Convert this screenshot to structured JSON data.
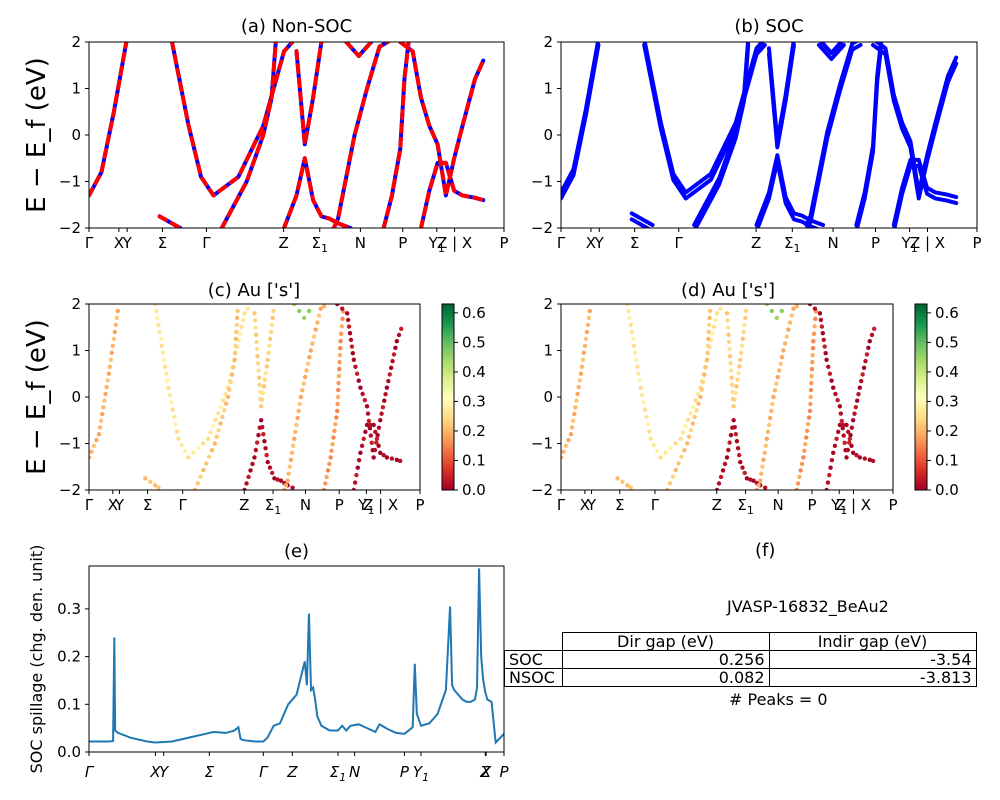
{
  "chart_data": [
    {
      "type": "line",
      "title": "(a) Non-SOC",
      "ylabel": "E − E_f (eV)",
      "ylim": [
        -2,
        2
      ],
      "yticks": [
        "−2",
        "−1",
        "0",
        "1",
        "2"
      ],
      "kpath": [
        "Γ",
        "X",
        "Y",
        "Σ",
        "Γ",
        "Z",
        "Σ1",
        "N",
        "P",
        "Y1",
        "Z | X",
        "P"
      ],
      "kpos": [
        0,
        0.072,
        0.092,
        0.177,
        0.283,
        0.469,
        0.556,
        0.654,
        0.756,
        0.838,
        0.881,
        1.0
      ],
      "series": [
        {
          "color": "#0000ff",
          "bands": [
            [
              [
                0,
                -1.3
              ],
              [
                0.03,
                -0.8
              ],
              [
                0.06,
                0.5
              ],
              [
                0.09,
                2
              ]
            ],
            [
              [
                0.2,
                2
              ],
              [
                0.24,
                0.2
              ],
              [
                0.27,
                -0.9
              ],
              [
                0.3,
                -1.3
              ],
              [
                0.36,
                -0.9
              ],
              [
                0.42,
                0.2
              ],
              [
                0.47,
                1.8
              ],
              [
                0.49,
                2
              ]
            ],
            [
              [
                0.32,
                -2
              ],
              [
                0.38,
                -1.0
              ],
              [
                0.42,
                0
              ],
              [
                0.44,
                0.8
              ],
              [
                0.45,
                2
              ]
            ],
            [
              [
                0.47,
                -2
              ],
              [
                0.5,
                -1.3
              ],
              [
                0.52,
                -0.5
              ],
              [
                0.54,
                -1.4
              ],
              [
                0.56,
                -1.75
              ],
              [
                0.58,
                -1.8
              ],
              [
                0.6,
                -1.9
              ],
              [
                0.63,
                -2
              ]
            ],
            [
              [
                0.5,
                1.8
              ],
              [
                0.52,
                -0.2
              ],
              [
                0.54,
                0.8
              ],
              [
                0.56,
                2
              ]
            ],
            [
              [
                0.59,
                -2
              ],
              [
                0.6,
                -1.8
              ],
              [
                0.64,
                0
              ],
              [
                0.67,
                1.0
              ],
              [
                0.7,
                1.9
              ],
              [
                0.72,
                2
              ]
            ],
            [
              [
                0.62,
                2
              ],
              [
                0.65,
                1.7
              ],
              [
                0.68,
                2
              ]
            ],
            [
              [
                0.71,
                -2
              ],
              [
                0.73,
                -1.3
              ],
              [
                0.75,
                -0.3
              ],
              [
                0.76,
                1.2
              ],
              [
                0.77,
                2
              ]
            ],
            [
              [
                0.75,
                2
              ],
              [
                0.78,
                1.8
              ],
              [
                0.8,
                0.8
              ],
              [
                0.82,
                0.2
              ],
              [
                0.84,
                -0.2
              ],
              [
                0.86,
                -1.3
              ],
              [
                0.88,
                -0.5
              ],
              [
                0.9,
                0.2
              ],
              [
                0.93,
                1.2
              ],
              [
                0.95,
                1.6
              ]
            ],
            [
              [
                0.8,
                -2
              ],
              [
                0.82,
                -1.2
              ],
              [
                0.84,
                -0.6
              ],
              [
                0.86,
                -0.6
              ],
              [
                0.88,
                -1.2
              ],
              [
                0.9,
                -1.3
              ],
              [
                0.93,
                -1.35
              ],
              [
                0.95,
                -1.4
              ]
            ],
            [
              [
                0.17,
                -1.75
              ],
              [
                0.2,
                -1.9
              ],
              [
                0.22,
                -2
              ]
            ]
          ]
        },
        {
          "color": "#ff0000",
          "dashed": true,
          "bands": "same-as-blue"
        }
      ]
    },
    {
      "type": "line",
      "title": "(b) SOC",
      "ylim": [
        -2,
        2
      ],
      "yticks": [
        "−2",
        "−1",
        "0",
        "1",
        "2"
      ],
      "kpath": [
        "Γ",
        "X",
        "Y",
        "Σ",
        "Γ",
        "Z",
        "Σ1",
        "N",
        "P",
        "Y1",
        "Z | X",
        "P"
      ],
      "series": [
        {
          "color": "#0000ff",
          "bands": "same-as-(a)-split"
        }
      ]
    },
    {
      "type": "scatter",
      "title": "(c)  Au ['s']",
      "ylabel": "E − E_f (eV)",
      "ylim": [
        -2,
        2
      ],
      "yticks": [
        "−2",
        "−1",
        "0",
        "1",
        "2"
      ],
      "kpath": [
        "Γ",
        "X",
        "Y",
        "Σ",
        "Γ",
        "Z",
        "Σ1",
        "N",
        "P",
        "Y1",
        "Z | X",
        "P"
      ],
      "colorbar": {
        "ticks": [
          "0.0",
          "0.1",
          "0.2",
          "0.3",
          "0.4",
          "0.5",
          "0.6"
        ],
        "cmap": "RdYlGn",
        "range": [
          0,
          0.63
        ]
      }
    },
    {
      "type": "scatter",
      "title": "(d) Au ['s']",
      "ylim": [
        -2,
        2
      ],
      "yticks": [
        "−2",
        "−1",
        "0",
        "1",
        "2"
      ],
      "kpath": [
        "Γ",
        "X",
        "Y",
        "Σ",
        "Γ",
        "Z",
        "Σ1",
        "N",
        "P",
        "Y1",
        "Z | X",
        "P"
      ],
      "colorbar": {
        "ticks": [
          "0.0",
          "0.1",
          "0.2",
          "0.3",
          "0.4",
          "0.5",
          "0.6"
        ],
        "cmap": "RdYlGn",
        "range": [
          0,
          0.63
        ]
      }
    },
    {
      "type": "line",
      "title": "(e)",
      "ylabel": "SOC spillage (chg. den. unit)",
      "ylim": [
        0,
        0.39
      ],
      "yticks": [
        "0.0",
        "0.1",
        "0.2",
        "0.3"
      ],
      "kpath": [
        "Γ",
        "X",
        "Y",
        "Σ",
        "Γ",
        "Z",
        "Σ1",
        "N",
        "P",
        "Y1",
        "Z",
        "X",
        "P"
      ],
      "kpos": [
        0,
        0.16,
        0.18,
        0.29,
        0.42,
        0.49,
        0.6,
        0.64,
        0.76,
        0.8,
        0.955,
        0.957,
        1.0
      ],
      "x": [
        0,
        0.05,
        0.058,
        0.061,
        0.063,
        0.07,
        0.1,
        0.14,
        0.16,
        0.2,
        0.25,
        0.29,
        0.3,
        0.33,
        0.35,
        0.36,
        0.365,
        0.37,
        0.4,
        0.42,
        0.43,
        0.445,
        0.46,
        0.48,
        0.49,
        0.5,
        0.52,
        0.525,
        0.53,
        0.535,
        0.54,
        0.545,
        0.55,
        0.56,
        0.58,
        0.6,
        0.61,
        0.62,
        0.63,
        0.65,
        0.67,
        0.69,
        0.7,
        0.72,
        0.74,
        0.76,
        0.78,
        0.785,
        0.79,
        0.8,
        0.82,
        0.84,
        0.86,
        0.87,
        0.875,
        0.88,
        0.9,
        0.91,
        0.92,
        0.93,
        0.935,
        0.94,
        0.945,
        0.95,
        0.955,
        0.96,
        0.97,
        0.98,
        1.0
      ],
      "y": [
        0.022,
        0.022,
        0.023,
        0.24,
        0.045,
        0.04,
        0.03,
        0.022,
        0.02,
        0.022,
        0.032,
        0.04,
        0.042,
        0.04,
        0.045,
        0.052,
        0.028,
        0.025,
        0.022,
        0.022,
        0.03,
        0.055,
        0.06,
        0.1,
        0.11,
        0.12,
        0.19,
        0.14,
        0.29,
        0.13,
        0.135,
        0.11,
        0.075,
        0.055,
        0.045,
        0.045,
        0.055,
        0.045,
        0.055,
        0.058,
        0.05,
        0.042,
        0.058,
        0.048,
        0.04,
        0.038,
        0.052,
        0.185,
        0.08,
        0.055,
        0.06,
        0.08,
        0.13,
        0.305,
        0.14,
        0.13,
        0.11,
        0.105,
        0.105,
        0.11,
        0.135,
        0.385,
        0.2,
        0.15,
        0.125,
        0.11,
        0.105,
        0.02,
        0.038
      ]
    }
  ],
  "panel_f": {
    "title": "(f)",
    "material": "JVASP-16832_BeAu2",
    "headers": [
      "",
      "Dir gap (eV)",
      "Indir gap (eV)"
    ],
    "rows": [
      {
        "label": "SOC",
        "dir": "0.256",
        "indir": "-3.54"
      },
      {
        "label": "NSOC",
        "dir": "0.082",
        "indir": "-3.813"
      }
    ],
    "peaks": "# Peaks = 0"
  }
}
